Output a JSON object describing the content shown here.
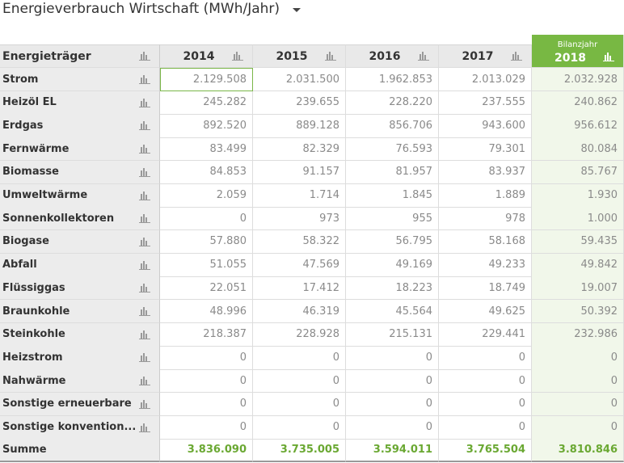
{
  "title": "Energieverbrauch Wirtschaft (MWh/Jahr)",
  "table": {
    "columns": [
      "Energieträger",
      "2014",
      "2015",
      "2016",
      "2017",
      "2018"
    ],
    "highlight_label": "Bilanzjahr",
    "rows": [
      [
        "Strom",
        "2.129.508",
        "2.031.500",
        "1.962.853",
        "2.013.029",
        "2.032.928"
      ],
      [
        "Heizöl EL",
        "245.282",
        "239.655",
        "228.220",
        "237.555",
        "240.862"
      ],
      [
        "Erdgas",
        "892.520",
        "889.128",
        "856.706",
        "943.600",
        "956.612"
      ],
      [
        "Fernwärme",
        "83.499",
        "82.329",
        "76.593",
        "79.301",
        "80.084"
      ],
      [
        "Biomasse",
        "84.853",
        "91.157",
        "81.957",
        "83.937",
        "85.767"
      ],
      [
        "Umweltwärme",
        "2.059",
        "1.714",
        "1.845",
        "1.889",
        "1.930"
      ],
      [
        "Sonnenkollektoren",
        "0",
        "973",
        "955",
        "978",
        "1.000"
      ],
      [
        "Biogase",
        "57.880",
        "58.322",
        "56.795",
        "58.168",
        "59.435"
      ],
      [
        "Abfall",
        "51.055",
        "47.569",
        "49.169",
        "49.233",
        "49.842"
      ],
      [
        "Flüssiggas",
        "22.051",
        "17.412",
        "18.223",
        "18.749",
        "19.007"
      ],
      [
        "Braunkohle",
        "48.996",
        "46.319",
        "45.564",
        "49.625",
        "50.392"
      ],
      [
        "Steinkohle",
        "218.387",
        "228.928",
        "215.131",
        "229.441",
        "232.986"
      ],
      [
        "Heizstrom",
        "0",
        "0",
        "0",
        "0",
        "0"
      ],
      [
        "Nahwärme",
        "0",
        "0",
        "0",
        "0",
        "0"
      ],
      [
        "Sonstige erneuerbare",
        "0",
        "0",
        "0",
        "0",
        "0"
      ],
      [
        "Sonstige konvention...",
        "0",
        "0",
        "0",
        "0",
        "0"
      ]
    ],
    "total": [
      "Summe",
      "3.836.090",
      "3.735.005",
      "3.594.011",
      "3.765.504",
      "3.810.846"
    ]
  }
}
